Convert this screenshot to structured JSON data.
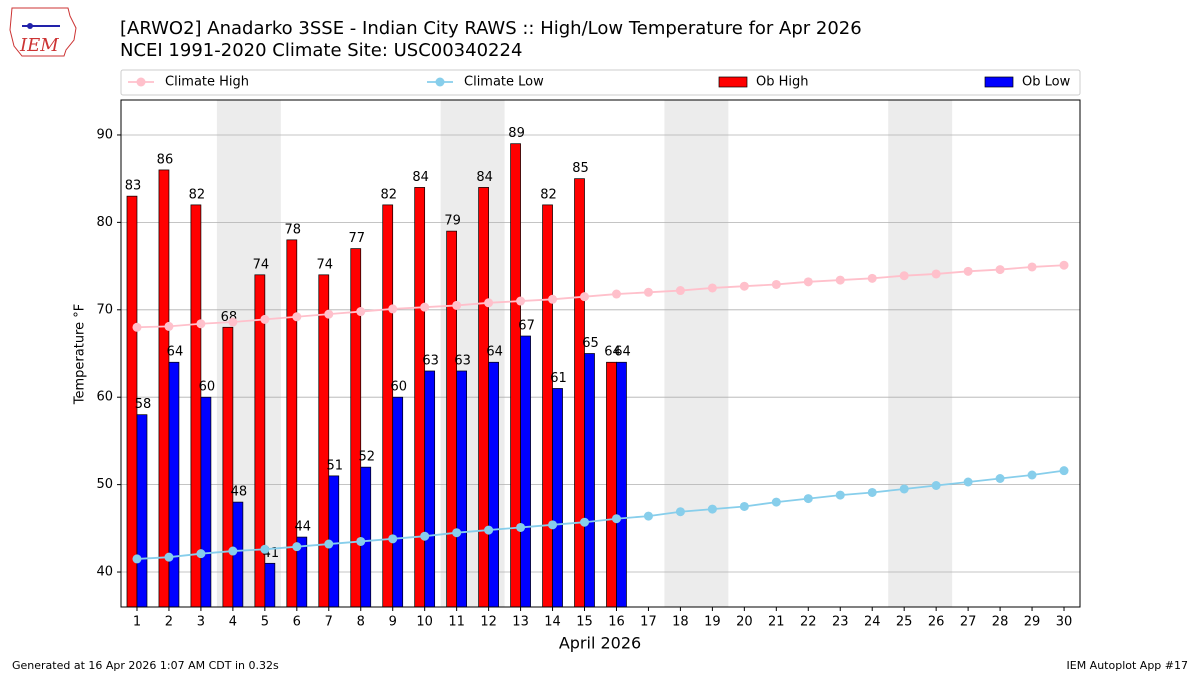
{
  "chart_data": {
    "type": "bar",
    "title": "[ARWO2] Anadarko 3SSE - Indian City RAWS :: High/Low Temperature for Apr 2026",
    "subtitle": "NCEI 1991-2020 Climate Site: USC00340224",
    "ylabel": "Temperature °F",
    "xlabel": "April 2026",
    "footer_left": "Generated at 16 Apr 2026 1:07 AM CDT in 0.32s",
    "footer_right": "IEM Autoplot App #17",
    "logo_text": "IEM",
    "categories": [
      "1",
      "2",
      "3",
      "4",
      "5",
      "6",
      "7",
      "8",
      "9",
      "10",
      "11",
      "12",
      "13",
      "14",
      "15",
      "16",
      "17",
      "18",
      "19",
      "20",
      "21",
      "22",
      "23",
      "24",
      "25",
      "26",
      "27",
      "28",
      "29",
      "30"
    ],
    "series": [
      {
        "name": "Climate High",
        "kind": "line",
        "color": "#ffc0cb",
        "values": [
          68.0,
          68.1,
          68.4,
          68.6,
          68.9,
          69.2,
          69.5,
          69.8,
          70.1,
          70.3,
          70.5,
          70.8,
          71.0,
          71.2,
          71.5,
          71.8,
          72.0,
          72.2,
          72.5,
          72.7,
          72.9,
          73.2,
          73.4,
          73.6,
          73.9,
          74.1,
          74.4,
          74.6,
          74.9,
          75.1
        ]
      },
      {
        "name": "Climate Low",
        "kind": "line",
        "color": "#87ceeb",
        "values": [
          41.5,
          41.7,
          42.1,
          42.4,
          42.6,
          42.9,
          43.2,
          43.5,
          43.8,
          44.1,
          44.5,
          44.8,
          45.1,
          45.4,
          45.7,
          46.1,
          46.4,
          46.9,
          47.2,
          47.5,
          48.0,
          48.4,
          48.8,
          49.1,
          49.5,
          49.9,
          50.3,
          50.7,
          51.1,
          51.6
        ]
      },
      {
        "name": "Ob High",
        "kind": "bar",
        "color": "#ff0000",
        "values": [
          83,
          86,
          82,
          68,
          74,
          78,
          74,
          77,
          82,
          84,
          79,
          84,
          89,
          82,
          85,
          64,
          null,
          null,
          null,
          null,
          null,
          null,
          null,
          null,
          null,
          null,
          null,
          null,
          null,
          null
        ]
      },
      {
        "name": "Ob Low",
        "kind": "bar",
        "color": "#0000ff",
        "values": [
          58,
          64,
          60,
          48,
          41,
          44,
          51,
          52,
          60,
          63,
          63,
          64,
          67,
          61,
          65,
          64,
          null,
          null,
          null,
          null,
          null,
          null,
          null,
          null,
          null,
          null,
          null,
          null,
          null,
          null
        ]
      }
    ],
    "ylim": [
      36,
      94
    ],
    "yticks": [
      40,
      50,
      60,
      70,
      80,
      90
    ],
    "grid": true
  }
}
